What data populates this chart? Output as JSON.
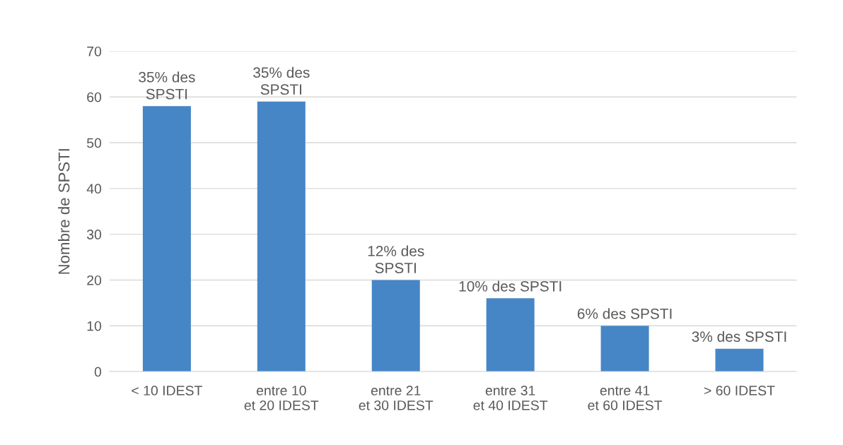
{
  "chart_data": {
    "type": "bar",
    "ylabel": "Nombre de SPSTI",
    "categories": [
      "< 10 IDEST",
      "entre 10\net 20 IDEST",
      "entre 21\net 30 IDEST",
      "entre 31\net 40 IDEST",
      "entre 41\net 60 IDEST",
      "> 60 IDEST"
    ],
    "values": [
      58,
      59,
      20,
      16,
      10,
      5
    ],
    "annotations": [
      {
        "text": "35% des\nSPSTI",
        "x": "< 10 IDEST",
        "y": 58
      },
      {
        "text": "35% des\nSPSTI",
        "x": "entre 10\net 20 IDEST",
        "y": 59
      },
      {
        "text": "12% des\nSPSTI",
        "x": "entre 21\net 30 IDEST",
        "y": 20
      },
      {
        "text": "10% des SPSTI",
        "x": "entre 31\net 40 IDEST",
        "y": 16
      },
      {
        "text": "6% des SPSTI",
        "x": "entre 41\net 60 IDEST",
        "y": 10
      },
      {
        "text": "3% des SPSTI",
        "x": "> 60 IDEST",
        "y": 5
      }
    ],
    "color": "#4686c6",
    "ylim": [
      0,
      70
    ],
    "yticks": [
      0,
      10,
      20,
      30,
      40,
      50,
      60,
      70
    ],
    "grid": "y"
  }
}
